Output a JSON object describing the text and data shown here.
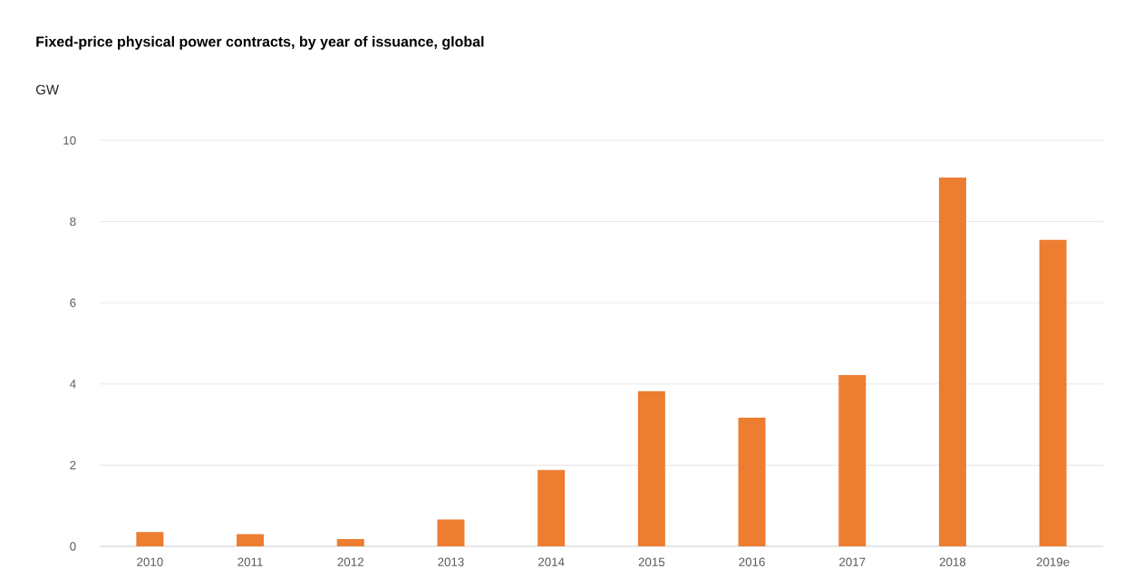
{
  "chart_data": {
    "type": "bar",
    "title": "Fixed-price physical power contracts, by year of issuance, global",
    "ylabel": "GW",
    "categories": [
      "2010",
      "2011",
      "2012",
      "2013",
      "2014",
      "2015",
      "2016",
      "2017",
      "2018",
      "2019e"
    ],
    "values": [
      0.35,
      0.3,
      0.18,
      0.66,
      1.88,
      3.82,
      3.17,
      4.22,
      9.09,
      7.55
    ],
    "color": "#ed7d31",
    "ylim": [
      0,
      10
    ],
    "yticks": [
      0,
      2,
      4,
      6,
      8,
      10
    ],
    "grid": "y"
  }
}
